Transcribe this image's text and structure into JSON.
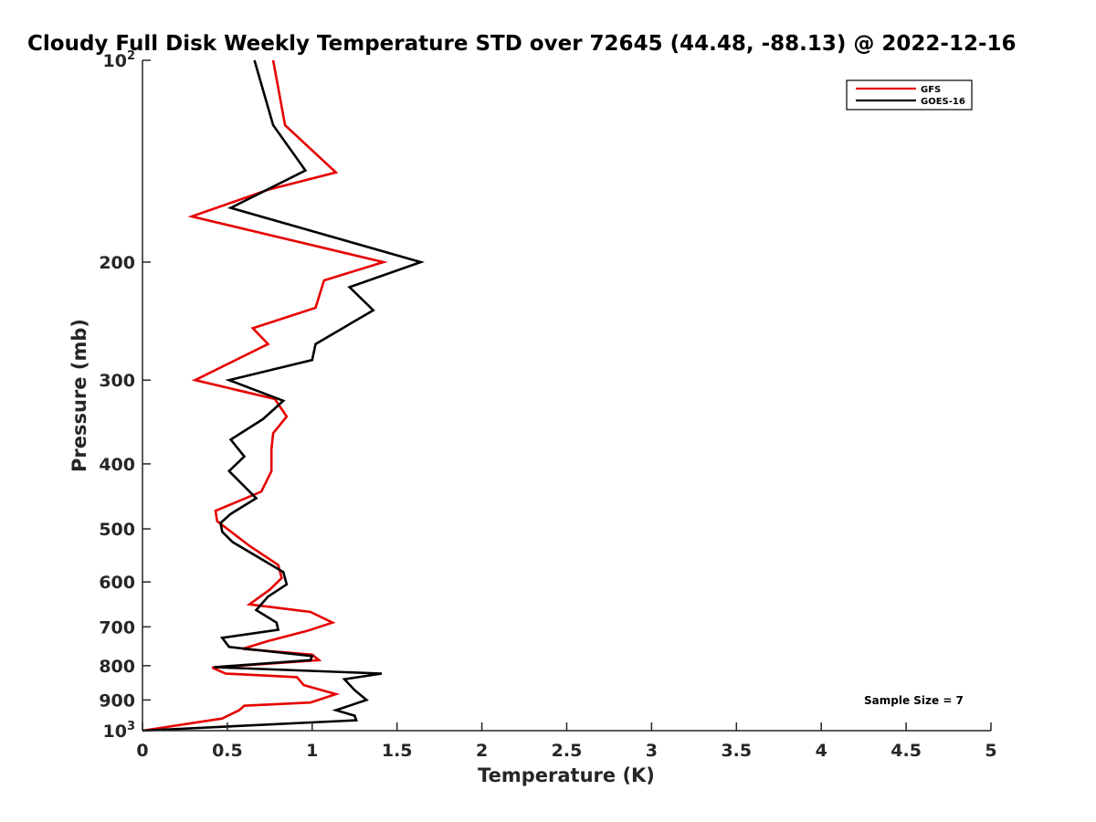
{
  "chart_data": {
    "type": "line",
    "title": "Cloudy Full Disk Weekly Temperature STD over 72645 (44.48, -88.13) @ 2022-12-16",
    "xlabel": "Temperature (K)",
    "ylabel": "Pressure (mb)",
    "xlim": [
      0,
      5
    ],
    "ylim": [
      100,
      1000
    ],
    "y_scale": "log",
    "y_reversed": true,
    "grid": false,
    "legend_position": "top-right",
    "x_ticks": [
      0,
      0.5,
      1,
      1.5,
      2,
      2.5,
      3,
      3.5,
      4,
      4.5,
      5
    ],
    "x_tick_labels": [
      "0",
      "0.5",
      "1",
      "1.5",
      "2",
      "2.5",
      "3",
      "3.5",
      "4",
      "4.5",
      "5"
    ],
    "y_ticks": [
      100,
      200,
      300,
      400,
      500,
      600,
      700,
      800,
      900,
      1000
    ],
    "y_tick_labels": [
      {
        "base": "10",
        "exp": "2"
      },
      {
        "base": "200",
        "exp": ""
      },
      {
        "base": "300",
        "exp": ""
      },
      {
        "base": "400",
        "exp": ""
      },
      {
        "base": "500",
        "exp": ""
      },
      {
        "base": "600",
        "exp": ""
      },
      {
        "base": "700",
        "exp": ""
      },
      {
        "base": "800",
        "exp": ""
      },
      {
        "base": "900",
        "exp": ""
      },
      {
        "base": "10",
        "exp": "3"
      }
    ],
    "annotation": "Sample Size = 7",
    "series": [
      {
        "name": "GFS",
        "color": "#e60000",
        "x": [
          0.77,
          0.84,
          1.14,
          0.74,
          0.29,
          1.42,
          1.07,
          1.02,
          0.65,
          0.74,
          0.31,
          0.78,
          0.85,
          0.77,
          0.76,
          0.76,
          0.7,
          0.43,
          0.44,
          0.63,
          0.8,
          0.82,
          0.75,
          0.63,
          0.99,
          1.12,
          0.97,
          0.74,
          0.59,
          1.0,
          1.04,
          0.41,
          0.49,
          0.91,
          0.95,
          1.14,
          0.99,
          0.6,
          0.57,
          0.47,
          0.0
        ],
        "y": [
          100,
          125,
          147,
          156,
          171,
          200,
          213,
          234,
          251,
          265,
          300,
          320,
          340,
          360,
          380,
          410,
          440,
          470,
          487,
          530,
          566,
          592,
          616,
          648,
          665,
          690,
          710,
          735,
          755,
          770,
          785,
          805,
          822,
          832,
          855,
          882,
          908,
          918,
          932,
          959,
          1000
        ]
      },
      {
        "name": "GOES-16",
        "color": "#000000",
        "x": [
          0.66,
          0.77,
          0.96,
          0.52,
          1.64,
          1.22,
          1.36,
          1.02,
          1.0,
          0.51,
          0.83,
          0.71,
          0.52,
          0.6,
          0.51,
          0.67,
          0.52,
          0.46,
          0.47,
          0.53,
          0.83,
          0.85,
          0.74,
          0.67,
          0.79,
          0.8,
          0.47,
          0.51,
          1.0,
          0.99,
          0.42,
          1.41,
          1.19,
          1.25,
          1.32,
          1.14,
          1.25,
          1.26,
          0.0
        ],
        "y": [
          100,
          125,
          146,
          166,
          200,
          218,
          236,
          265,
          280,
          300,
          322,
          343,
          368,
          390,
          410,
          450,
          475,
          490,
          505,
          523,
          580,
          605,
          631,
          661,
          690,
          707,
          727,
          750,
          774,
          785,
          804,
          822,
          838,
          870,
          900,
          932,
          950,
          965,
          1000
        ]
      }
    ]
  }
}
